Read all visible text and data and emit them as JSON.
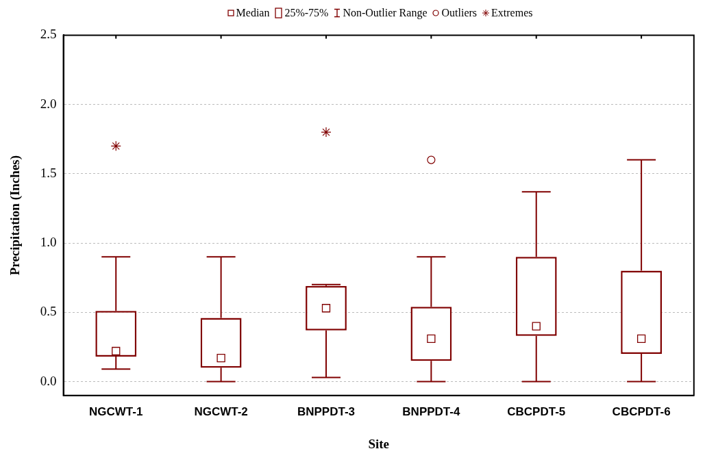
{
  "chart_data": {
    "type": "box",
    "xlabel": "Site",
    "ylabel": "Precipitation (Inches)",
    "categories": [
      "NGCWT-1",
      "NGCWT-2",
      "BNPPDT-3",
      "BNPPDT-4",
      "CBCPDT-5",
      "CBCPDT-6"
    ],
    "ylim": [
      -0.1,
      2.5
    ],
    "yticks": [
      {
        "value": 0,
        "label": "0.0"
      },
      0.5,
      {
        "value": 1,
        "label": "1.0"
      },
      1.5,
      {
        "value": 2,
        "label": "2.0"
      },
      2.5
    ],
    "grid": "y",
    "legend": "top",
    "annotations": [
      "Median",
      "25%-75%",
      "Non-Outlier Range"
    ],
    "series": [
      {
        "type": "box",
        "color": "#800000",
        "boxes": [
          {
            "low": 0.09,
            "q1": 0.18,
            "median": 0.22,
            "q3": 0.51,
            "high": 0.9
          },
          {
            "low": 0,
            "q1": 0.1,
            "median": 0.17,
            "q3": 0.46,
            "high": 0.9
          },
          {
            "low": 0.03,
            "q1": 0.37,
            "median": 0.53,
            "q3": 0.69,
            "high": 0.7
          },
          {
            "low": 0,
            "q1": 0.15,
            "median": 0.31,
            "q3": 0.54,
            "high": 0.9
          },
          {
            "low": 0,
            "q1": 0.33,
            "median": 0.4,
            "q3": 0.9,
            "high": 1.37
          },
          {
            "low": 0,
            "q1": 0.2,
            "median": 0.31,
            "q3": 0.8,
            "high": 1.6
          }
        ]
      },
      {
        "name": "Outliers",
        "type": "scatter",
        "marker": "circle",
        "color": "#800000",
        "x": [
          "BNPPDT-4"
        ],
        "values": [
          1.6
        ]
      },
      {
        "name": "Extremes",
        "type": "scatter",
        "marker": "cross",
        "color": "#800000",
        "x": [
          "NGCWT-1",
          "BNPPDT-3"
        ],
        "values": [
          1.7,
          1.8
        ]
      }
    ]
  }
}
